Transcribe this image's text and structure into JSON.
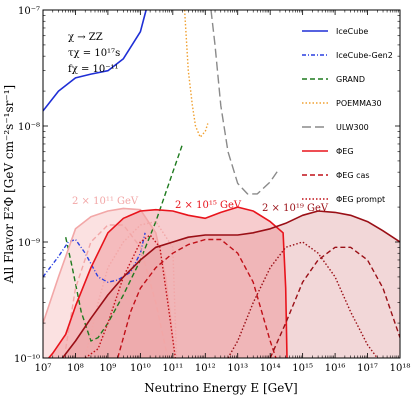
{
  "chart_data": {
    "type": "line",
    "xlabel": "Neutrino Energy E [GeV]",
    "ylabel": "All Flavor E²Φ [GeV cm⁻²s⁻¹sr⁻¹]",
    "xscale": "log",
    "yscale": "log",
    "xlim": [
      10000000.0,
      1e+18
    ],
    "ylim": [
      1e-10,
      1e-07
    ],
    "x_tick_labels": [
      "10⁷",
      "10⁸",
      "10⁹",
      "10¹⁰",
      "10¹¹",
      "10¹²",
      "10¹³",
      "10¹⁴",
      "10¹⁵",
      "10¹⁶",
      "10¹⁷",
      "10¹⁸"
    ],
    "y_tick_labels": [
      "10⁻¹⁰",
      "10⁻⁹",
      "10⁻⁸",
      "10⁻⁷"
    ],
    "params": [
      "χ → ZZ",
      "τχ = 10¹⁷s",
      "fχ = 10⁻¹¹"
    ],
    "annotations": [
      {
        "text": "2 × 10¹¹ GeV",
        "color": "#f2a7a7"
      },
      {
        "text": "2 × 10¹⁵ GeV",
        "color": "#e8141c"
      },
      {
        "text": "2 × 10¹⁹ GeV",
        "color": "#9a0f16"
      }
    ],
    "legend_position": "right",
    "legend": [
      {
        "name": "IceCube",
        "color": "#1f2fd6",
        "style": "solid"
      },
      {
        "name": "IceCube-Gen2",
        "color": "#2a3fe0",
        "style": "dashdot"
      },
      {
        "name": "GRAND",
        "color": "#1e7a1e",
        "style": "dashed"
      },
      {
        "name": "POEMMA30",
        "color": "#f0a030",
        "style": "dotted"
      },
      {
        "name": "ULW300",
        "color": "#8a8a8a",
        "style": "longdash"
      },
      {
        "name": "ΦEG",
        "color": "#e8141c",
        "style": "solid"
      },
      {
        "name": "ΦEG cas",
        "color": "#c01018",
        "style": "dashed"
      },
      {
        "name": "ΦEG prompt",
        "color": "#c01018",
        "style": "dotted"
      }
    ],
    "series": [
      {
        "name": "IceCube",
        "color": "#1f2fd6",
        "style": "solid",
        "x": [
          10000000.0,
          30000000.0,
          100000000.0,
          300000000.0,
          1000000000.0,
          3000000000.0,
          10000000000.0,
          15000000000.0
        ],
        "y": [
          1.35e-08,
          2e-08,
          2.6e-08,
          2.8e-08,
          3e-08,
          3.8e-08,
          6.5e-08,
          1e-07
        ]
      },
      {
        "name": "IceCube-Gen2",
        "color": "#2a3fe0",
        "style": "dashdot",
        "x": [
          10000000.0,
          30000000.0,
          60000000.0,
          100000000.0,
          200000000.0,
          500000000.0,
          1000000000.0,
          2000000000.0,
          5000000000.0,
          10000000000.0,
          14000000000.0
        ],
        "y": [
          5e-10,
          7.5e-10,
          1e-09,
          1.05e-09,
          8e-10,
          5e-10,
          4.5e-10,
          4.7e-10,
          5.5e-10,
          8e-10,
          1.2e-09
        ]
      },
      {
        "name": "GRAND",
        "color": "#1e7a1e",
        "style": "dashed",
        "x": [
          50000000.0,
          80000000.0,
          150000000.0,
          300000000.0,
          500000000.0,
          1000000000.0,
          3000000000.0,
          10000000000.0,
          30000000000.0,
          100000000000.0,
          200000000000.0
        ],
        "y": [
          1.1e-09,
          6e-10,
          2.5e-10,
          1.4e-10,
          1.5e-10,
          2e-10,
          3.5e-10,
          7e-10,
          1.5e-09,
          4e-09,
          7e-09
        ]
      },
      {
        "name": "POEMMA30",
        "color": "#f0a030",
        "style": "dotted",
        "x": [
          230000000000.0,
          300000000000.0,
          400000000000.0,
          500000000000.0,
          700000000000.0,
          1000000000000.0,
          1200000000000.0
        ],
        "y": [
          1e-07,
          3e-08,
          1.5e-08,
          1e-08,
          8e-09,
          9e-09,
          1.05e-08
        ]
      },
      {
        "name": "ULW300",
        "color": "#8a8a8a",
        "style": "longdash",
        "x": [
          1500000000000.0,
          2000000000000.0,
          3000000000000.0,
          5000000000000.0,
          10000000000000.0,
          20000000000000.0,
          40000000000000.0,
          100000000000000.0,
          180000000000000.0
        ],
        "y": [
          1e-07,
          5e-08,
          1.5e-08,
          6e-09,
          3.2e-09,
          2.6e-09,
          2.6e-09,
          3.3e-09,
          4.2e-09
        ]
      },
      {
        "name": "ΦEG 2×10¹¹",
        "color": "#f2a7a7",
        "style": "solid",
        "x": [
          10000000.0,
          30000000.0,
          100000000.0,
          300000000.0,
          1000000000.0,
          3000000000.0,
          10000000000.0,
          30000000000.0,
          60000000000.0,
          90000000000.0,
          110000000000.0
        ],
        "y": [
          2e-10,
          5e-10,
          1.3e-09,
          1.65e-09,
          1.85e-09,
          1.95e-09,
          1.9e-09,
          1.2e-09,
          5e-10,
          2e-10,
          1e-10
        ]
      },
      {
        "name": "ΦEG 2×10¹¹ cas",
        "color": "#f2a7a7",
        "style": "dashed",
        "x": [
          50000000.0,
          100000000.0,
          300000000.0,
          1000000000.0,
          3000000000.0,
          10000000000.0,
          30000000000.0,
          70000000000.0
        ],
        "y": [
          1.2e-10,
          4e-10,
          1e-09,
          1.4e-09,
          1.4e-09,
          9e-10,
          3e-10,
          1e-10
        ]
      },
      {
        "name": "ΦEG 2×10¹¹ prompt",
        "color": "#f2a7a7",
        "style": "dotted",
        "x": [
          200000000.0,
          500000000.0,
          1000000000.0,
          3000000000.0,
          10000000000.0,
          30000000000.0,
          100000000000.0,
          130000000000.0
        ],
        "y": [
          1e-10,
          3e-10,
          6e-10,
          1e-09,
          1.4e-09,
          1.5e-09,
          9e-10,
          1e-10
        ]
      },
      {
        "name": "ΦEG 2×10¹⁵",
        "color": "#e8141c",
        "style": "solid",
        "x": [
          15000000.0,
          20000000.0,
          50000000.0,
          100000000.0,
          300000000.0,
          1000000000.0,
          3000000000.0,
          10000000000.0,
          30000000000.0,
          100000000000.0,
          300000000000.0,
          1000000000000.0,
          3000000000000.0,
          10000000000000.0,
          30000000000000.0,
          100000000000000.0,
          250000000000000.0,
          300000000000000.0,
          330000000000000.0
        ],
        "y": [
          1e-10,
          1.1e-10,
          1.6e-10,
          2.8e-10,
          6e-10,
          1.2e-09,
          1.6e-09,
          1.85e-09,
          1.9e-09,
          1.85e-09,
          1.7e-09,
          1.6e-09,
          1.8e-09,
          2e-09,
          1.85e-09,
          1.5e-09,
          1.2e-09,
          4e-10,
          1e-10
        ]
      },
      {
        "name": "ΦEG 2×10¹⁵ cas",
        "color": "#c01018",
        "style": "dashed",
        "x": [
          2000000000.0,
          5000000000.0,
          10000000000.0,
          30000000000.0,
          100000000000.0,
          300000000000.0,
          1000000000000.0,
          3000000000000.0,
          10000000000000.0,
          30000000000000.0,
          100000000000000.0,
          150000000000000.0
        ],
        "y": [
          1e-10,
          2.5e-10,
          4e-10,
          6e-10,
          8e-10,
          9.5e-10,
          1.05e-09,
          1.05e-09,
          8e-10,
          4.5e-10,
          1.4e-10,
          1e-10
        ]
      },
      {
        "name": "ΦEG 2×10¹⁵ prompt",
        "color": "#c01018",
        "style": "dotted",
        "x": [
          200000000.0,
          500000000.0,
          1000000000.0,
          3000000000.0,
          10000000000.0,
          20000000000.0,
          40000000000.0,
          70000000000.0,
          120000000000.0
        ],
        "y": [
          1e-10,
          1.2e-10,
          2e-10,
          5e-10,
          1e-09,
          1.15e-09,
          9e-10,
          3e-10,
          1e-10
        ]
      },
      {
        "name": "ΦEG 2×10¹⁹",
        "color": "#9a0f16",
        "style": "solid",
        "x": [
          40000000.0,
          100000000.0,
          300000000.0,
          1000000000.0,
          3000000000.0,
          10000000000.0,
          30000000000.0,
          100000000000.0,
          300000000000.0,
          1000000000000.0,
          3000000000000.0,
          10000000000000.0,
          30000000000000.0,
          100000000000000.0,
          300000000000000.0,
          1000000000000000.0,
          3000000000000000.0,
          1e+16,
          3e+16,
          1e+17,
          3e+17,
          1e+18
        ],
        "y": [
          1e-10,
          1.4e-10,
          2.2e-10,
          3.5e-10,
          5e-10,
          7e-10,
          9e-10,
          1e-09,
          1.1e-09,
          1.15e-09,
          1.15e-09,
          1.15e-09,
          1.2e-09,
          1.3e-09,
          1.45e-09,
          1.7e-09,
          1.85e-09,
          1.8e-09,
          1.7e-09,
          1.5e-09,
          1.25e-09,
          1e-09
        ]
      },
      {
        "name": "ΦEG 2×10¹⁹ cas",
        "color": "#9a0f16",
        "style": "dashed",
        "x": [
          100000000000000.0,
          300000000000000.0,
          1000000000000000.0,
          3000000000000000.0,
          1e+16,
          3e+16,
          1e+17,
          3e+17,
          1e+18
        ],
        "y": [
          1e-10,
          2e-10,
          4.5e-10,
          7e-10,
          9e-10,
          9e-10,
          7e-10,
          4e-10,
          1.5e-10
        ]
      },
      {
        "name": "ΦEG 2×10¹⁹ prompt",
        "color": "#9a0f16",
        "style": "dotted",
        "x": [
          5000000000000.0,
          10000000000000.0,
          30000000000000.0,
          100000000000000.0,
          300000000000000.0,
          1000000000000000.0,
          3000000000000000.0,
          1e+16,
          3e+16,
          1e+17,
          2e+17
        ],
        "y": [
          1e-10,
          1.4e-10,
          3e-10,
          6e-10,
          9e-10,
          1e-09,
          8e-10,
          5e-10,
          2.5e-10,
          1.3e-10,
          1e-10
        ]
      }
    ],
    "bands": [
      {
        "name": "2×10¹¹ band",
        "color": "#f7c9c9",
        "opacity": 0.55,
        "x": [
          10000000.0,
          30000000.0,
          100000000.0,
          300000000.0,
          1000000000.0,
          3000000000.0,
          10000000000.0,
          30000000000.0,
          60000000000.0,
          90000000000.0,
          110000000000.0
        ],
        "y": [
          2e-10,
          5e-10,
          1.3e-09,
          1.65e-09,
          1.85e-09,
          1.95e-09,
          1.9e-09,
          1.2e-09,
          5e-10,
          2e-10,
          1e-10
        ]
      },
      {
        "name": "2×10¹⁹ band",
        "color": "#d98b8f",
        "opacity": 0.35,
        "x": [
          40000000.0,
          100000000.0,
          300000000.0,
          1000000000.0,
          3000000000.0,
          10000000000.0,
          30000000000.0,
          100000000000.0,
          300000000000.0,
          1000000000000.0,
          3000000000000.0,
          10000000000000.0,
          30000000000000.0,
          100000000000000.0,
          300000000000000.0,
          1000000000000000.0,
          3000000000000000.0,
          1e+16,
          3e+16,
          1e+17,
          3e+17,
          1e+18
        ],
        "y": [
          1e-10,
          1.4e-10,
          2.2e-10,
          3.5e-10,
          5e-10,
          7e-10,
          9e-10,
          1e-09,
          1.1e-09,
          1.15e-09,
          1.15e-09,
          1.15e-09,
          1.2e-09,
          1.3e-09,
          1.45e-09,
          1.7e-09,
          1.85e-09,
          1.8e-09,
          1.7e-09,
          1.5e-09,
          1.25e-09,
          1e-09
        ]
      },
      {
        "name": "2×10¹⁵ band",
        "color": "#ee8f92",
        "opacity": 0.45,
        "x": [
          15000000.0,
          20000000.0,
          50000000.0,
          100000000.0,
          300000000.0,
          1000000000.0,
          3000000000.0,
          10000000000.0,
          30000000000.0,
          100000000000.0,
          300000000000.0,
          1000000000000.0,
          3000000000000.0,
          10000000000000.0,
          30000000000000.0,
          100000000000000.0,
          250000000000000.0,
          300000000000000.0,
          330000000000000.0
        ],
        "y": [
          1e-10,
          1.1e-10,
          1.6e-10,
          2.8e-10,
          6e-10,
          1.2e-09,
          1.6e-09,
          1.85e-09,
          1.9e-09,
          1.85e-09,
          1.7e-09,
          1.6e-09,
          1.8e-09,
          2e-09,
          1.85e-09,
          1.5e-09,
          1.2e-09,
          4e-10,
          1e-10
        ]
      }
    ]
  }
}
